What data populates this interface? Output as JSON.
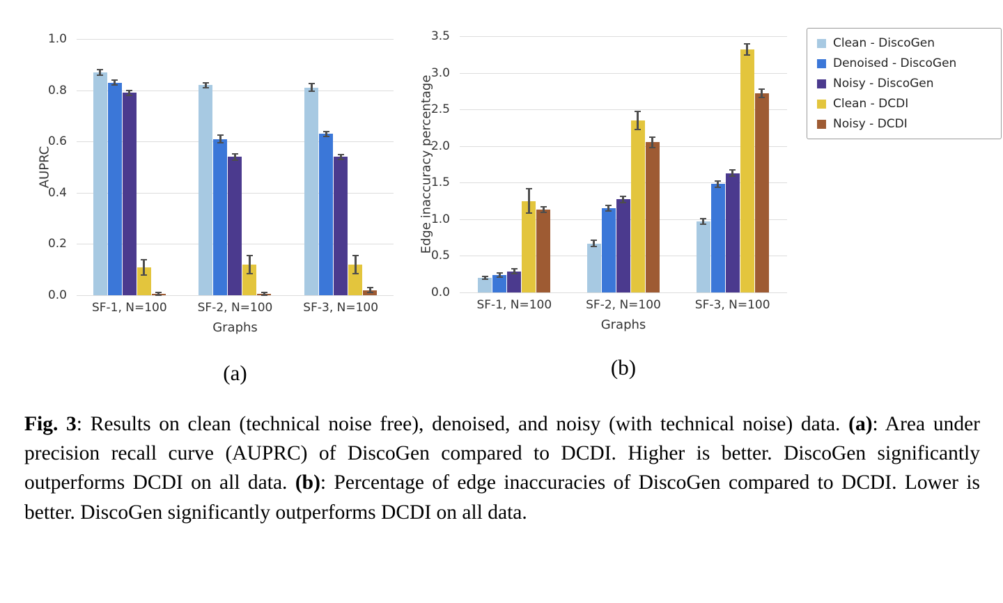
{
  "figure": {
    "sublabel_a": "(a)",
    "sublabel_b": "(b)",
    "caption": {
      "fig_label": "Fig. 3",
      "text_1": ": Results on clean (technical noise free), denoised, and noisy (with technical noise) data. ",
      "a_label": "(a)",
      "text_2": ": Area under precision recall curve (AUPRC) of DiscoGen compared to DCDI. Higher is better. DiscoGen significantly outperforms DCDI on all data. ",
      "b_label": "(b)",
      "text_3": ": Percentage of edge inaccuracies of DiscoGen compared to DCDI. Lower is better. DiscoGen significantly outperforms DCDI on all data."
    }
  },
  "styles": {
    "error_bar_color": "#4d4d4d",
    "gridline_color": "#dcdcdc"
  },
  "legend": {
    "position": "top-right",
    "entries": [
      {
        "label": "Clean - DiscoGen",
        "color": "#a7c9e2"
      },
      {
        "label": "Denoised - DiscoGen",
        "color": "#3b77d8"
      },
      {
        "label": "Noisy - DiscoGen",
        "color": "#4b3a8e"
      },
      {
        "label": "Clean - DCDI",
        "color": "#e3c53d"
      },
      {
        "label": "Noisy - DCDI",
        "color": "#9e5b33"
      }
    ]
  },
  "chart_data": [
    {
      "id": "a",
      "type": "bar",
      "title": "",
      "xlabel": "Graphs",
      "ylabel": "AUPRC",
      "ylim": [
        0,
        1.0
      ],
      "ytick_labels": [
        "0.0",
        "0.2",
        "0.4",
        "0.6",
        "0.8",
        "1.0"
      ],
      "grid": true,
      "categories": [
        "SF-1, N=100",
        "SF-2, N=100",
        "SF-3, N=100"
      ],
      "series": [
        {
          "name": "Clean - DiscoGen",
          "color": "#a7c9e2",
          "values": [
            0.87,
            0.82,
            0.81
          ],
          "errors": [
            0.01,
            0.01,
            0.015
          ]
        },
        {
          "name": "Denoised - DiscoGen",
          "color": "#3b77d8",
          "values": [
            0.83,
            0.61,
            0.63
          ],
          "errors": [
            0.01,
            0.015,
            0.01
          ]
        },
        {
          "name": "Noisy - DiscoGen",
          "color": "#4b3a8e",
          "values": [
            0.79,
            0.54,
            0.54
          ],
          "errors": [
            0.01,
            0.012,
            0.01
          ]
        },
        {
          "name": "Clean - DCDI",
          "color": "#e3c53d",
          "values": [
            0.11,
            0.12,
            0.12
          ],
          "errors": [
            0.03,
            0.035,
            0.035
          ]
        },
        {
          "name": "Noisy - DCDI",
          "color": "#9e5b33",
          "values": [
            0.005,
            0.005,
            0.02
          ],
          "errors": [
            0.005,
            0.005,
            0.01
          ]
        }
      ]
    },
    {
      "id": "b",
      "type": "bar",
      "title": "",
      "xlabel": "Graphs",
      "ylabel": "Edge inaccuracy percentage",
      "ylim": [
        0,
        3.5
      ],
      "ytick_labels": [
        "0.0",
        "0.5",
        "1.0",
        "1.5",
        "2.0",
        "2.5",
        "3.0",
        "3.5"
      ],
      "grid": true,
      "categories": [
        "SF-1, N=100",
        "SF-2, N=100",
        "SF-3, N=100"
      ],
      "series": [
        {
          "name": "Clean - DiscoGen",
          "color": "#a7c9e2",
          "values": [
            0.2,
            0.67,
            0.97
          ],
          "errors": [
            0.02,
            0.04,
            0.04
          ]
        },
        {
          "name": "Denoised - DiscoGen",
          "color": "#3b77d8",
          "values": [
            0.24,
            1.15,
            1.48
          ],
          "errors": [
            0.03,
            0.04,
            0.04
          ]
        },
        {
          "name": "Noisy - DiscoGen",
          "color": "#4b3a8e",
          "values": [
            0.29,
            1.27,
            1.63
          ],
          "errors": [
            0.03,
            0.04,
            0.04
          ]
        },
        {
          "name": "Clean - DCDI",
          "color": "#e3c53d",
          "values": [
            1.25,
            2.35,
            3.32
          ],
          "errors": [
            0.17,
            0.12,
            0.08
          ]
        },
        {
          "name": "Noisy - DCDI",
          "color": "#9e5b33",
          "values": [
            1.13,
            2.05,
            2.72
          ],
          "errors": [
            0.04,
            0.07,
            0.06
          ]
        }
      ]
    }
  ]
}
